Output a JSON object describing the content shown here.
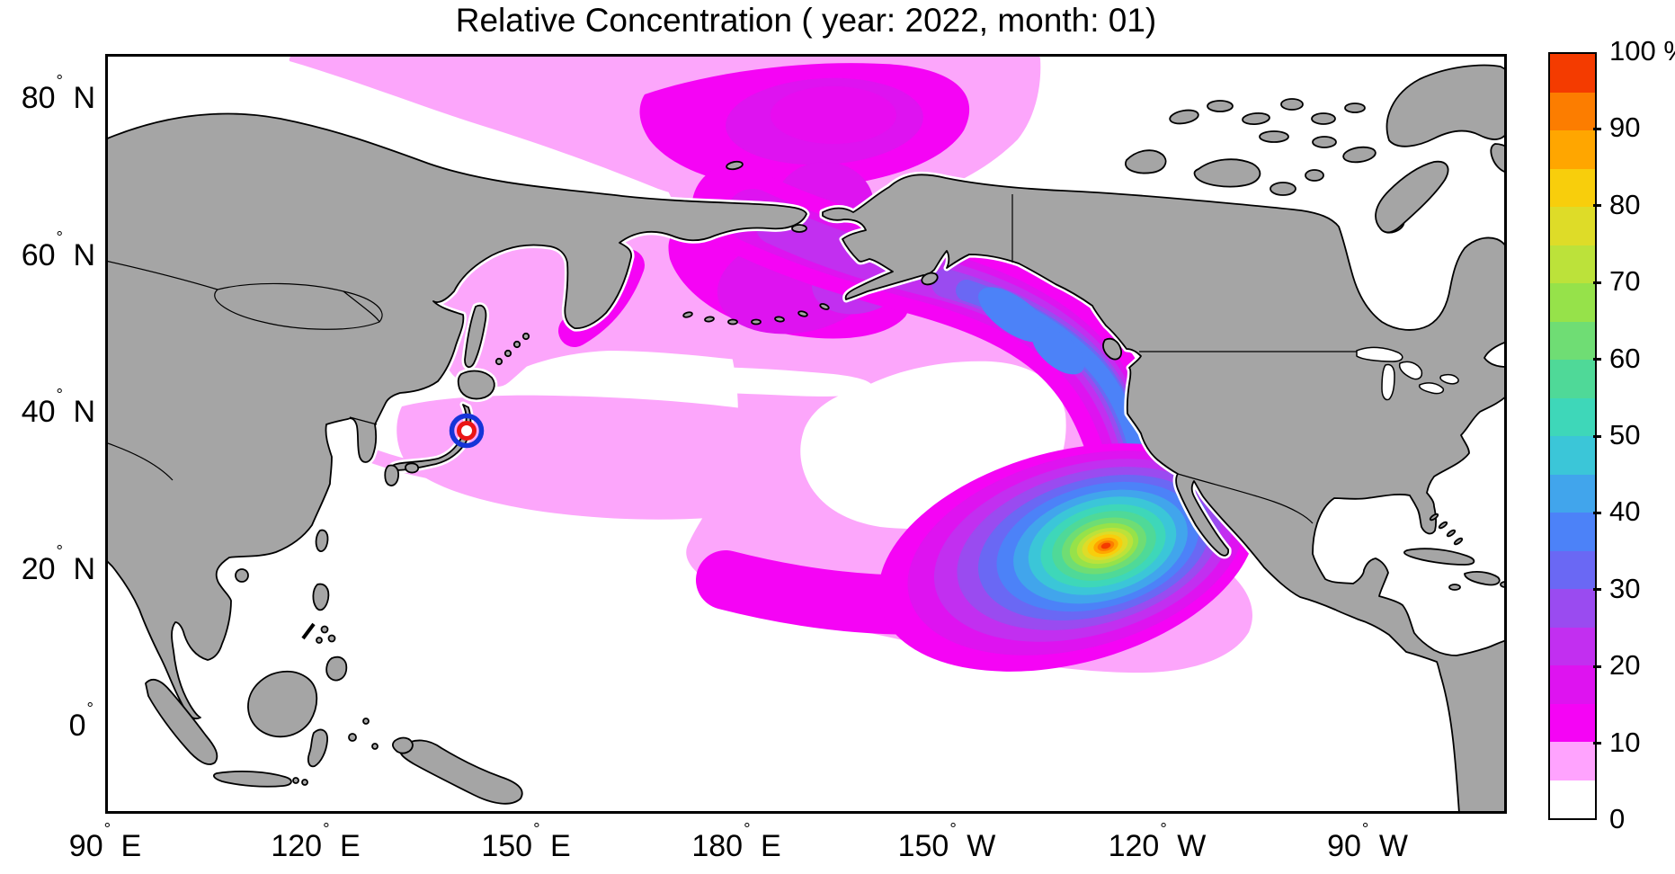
{
  "title": "Relative Concentration ( year: 2022, month: 01)",
  "degree_symbol": "°",
  "map": {
    "x_axis": {
      "ticks": [
        {
          "num": "90",
          "hem": "E",
          "lon_e": 90
        },
        {
          "num": "120",
          "hem": "E",
          "lon_e": 120
        },
        {
          "num": "150",
          "hem": "E",
          "lon_e": 150
        },
        {
          "num": "180",
          "hem": "E",
          "lon_e": 180
        },
        {
          "num": "150",
          "hem": "W",
          "lon_e": 210
        },
        {
          "num": "120",
          "hem": "W",
          "lon_e": 240
        },
        {
          "num": "90",
          "hem": "W",
          "lon_e": 270
        }
      ]
    },
    "y_axis": {
      "ticks": [
        {
          "num": "80",
          "hem": "N",
          "lat": 80
        },
        {
          "num": "60",
          "hem": "N",
          "lat": 60
        },
        {
          "num": "40",
          "hem": "N",
          "lat": 40
        },
        {
          "num": "20",
          "hem": "N",
          "lat": 20
        },
        {
          "num": "0",
          "hem": "",
          "lat": 0
        }
      ]
    }
  },
  "colorbar": {
    "unit_label": "100 %",
    "tick_labels": [
      {
        "value": 100,
        "label": "100 %"
      },
      {
        "value": 90,
        "label": "90"
      },
      {
        "value": 80,
        "label": "80"
      },
      {
        "value": 70,
        "label": "70"
      },
      {
        "value": 60,
        "label": "60"
      },
      {
        "value": 50,
        "label": "50"
      },
      {
        "value": 40,
        "label": "40"
      },
      {
        "value": 30,
        "label": "30"
      },
      {
        "value": 20,
        "label": "20"
      },
      {
        "value": 10,
        "label": "10"
      },
      {
        "value": 0,
        "label": "0"
      }
    ],
    "segment_colors_top_to_bottom": [
      "#f43b00",
      "#fc7d00",
      "#ffa600",
      "#f8ce0c",
      "#dedc28",
      "#bce23a",
      "#96e24a",
      "#6fdd74",
      "#4fd998",
      "#3ed7b9",
      "#3bc6d8",
      "#41a5ec",
      "#4c82f8",
      "#6a68f4",
      "#9a4bf0",
      "#c22ff0",
      "#de13f0",
      "#f504f5",
      "#ffa3fe",
      "#ffffff"
    ]
  },
  "chart_data": {
    "type": "heatmap",
    "subtype": "filled-contour-geographic-map",
    "title": "Relative Concentration ( year: 2022, month: 01)",
    "colorbar": {
      "unit": "%",
      "min": 0,
      "max": 100,
      "step": 5,
      "tick_values": [
        0,
        10,
        20,
        30,
        40,
        50,
        60,
        70,
        80,
        90,
        100
      ],
      "colors_low_to_high": [
        "#ffffff",
        "#ffa3fe",
        "#f504f5",
        "#de13f0",
        "#c22ff0",
        "#9a4bf0",
        "#6a68f4",
        "#4c82f8",
        "#41a5ec",
        "#3bc6d8",
        "#3ed7b9",
        "#4fd998",
        "#6fdd74",
        "#96e24a",
        "#bce23a",
        "#dedc28",
        "#f8ce0c",
        "#ffa600",
        "#fc7d00",
        "#f43b00"
      ]
    },
    "projection": "equirectangular",
    "lon_range_deg_e": [
      90,
      290
    ],
    "lat_range_deg_n": [
      -11,
      86
    ],
    "land_color": "#a5a5a5",
    "coast_color": "#000000",
    "ocean_color": "#ffffff",
    "source_marker": {
      "lon_e": 141.5,
      "lat_n": 38,
      "style": "red ring inside blue ring",
      "ring_colors": [
        "#1534d8",
        "#ea1515"
      ]
    },
    "features": [
      {
        "name": "hotspot-maximum",
        "lon_e": 238,
        "lat_n": 23,
        "peak_value_pct": 100,
        "note": "concentric rainbow contours red core (95-100%) ringed by orange, yellow, green, cyan, blue, violet, magenta"
      },
      {
        "name": "northeast-pacific-coastal-band",
        "extent": "Bering Sea along Alaska and British Columbia coast down to Baja California",
        "value_pct_range": [
          20,
          45
        ],
        "note": "blue (35-45%) hugging coast, violet/magenta seaward"
      },
      {
        "name": "arctic-band",
        "extent": "along Siberian Arctic coast through Bering Strait",
        "value_pct_range": [
          5,
          20
        ]
      },
      {
        "name": "japan-band",
        "extent": "from Japan east to ~165W near 30-42N",
        "value_pct_range": [
          5,
          10
        ]
      },
      {
        "name": "hawaii-arm",
        "extent": "westward arm near 20N past Hawaii",
        "value_pct_range": [
          5,
          30
        ]
      },
      {
        "name": "gyre-hole",
        "extent": "central North Pacific ~35-45N, 170E-150W",
        "value_pct_range": [
          0,
          5
        ],
        "note": "white region below 5%"
      }
    ]
  }
}
